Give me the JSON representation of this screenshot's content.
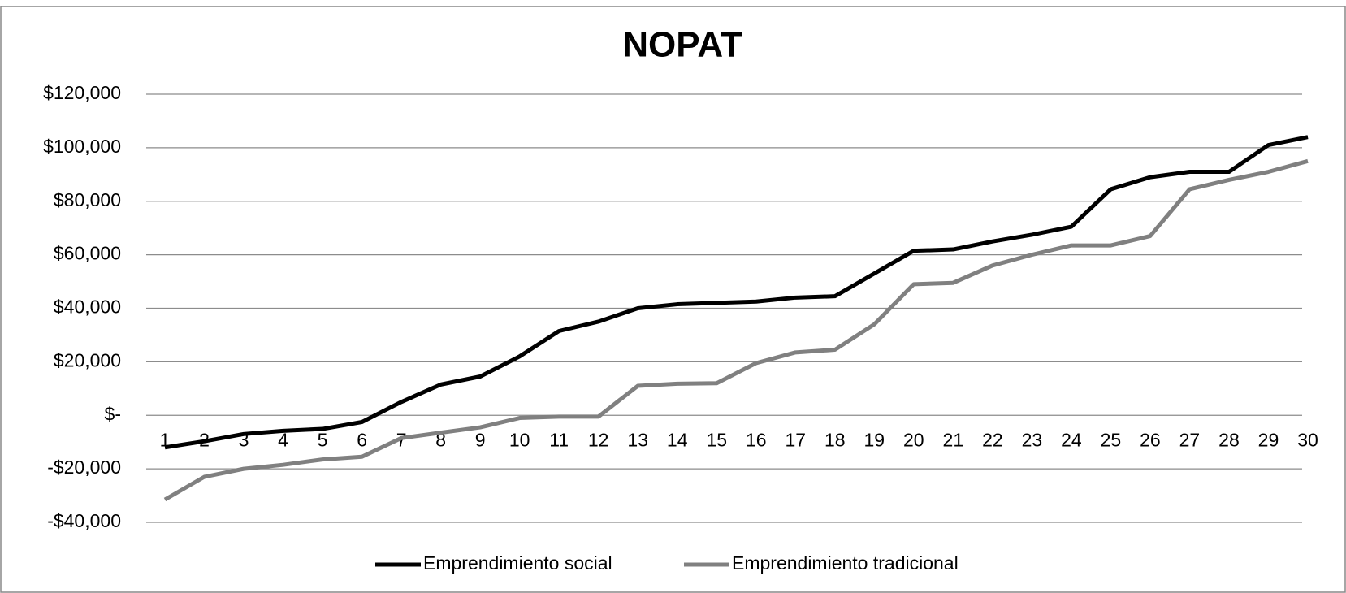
{
  "chart_data": {
    "type": "line",
    "title": "NOPAT",
    "categories": [
      "1",
      "2",
      "3",
      "4",
      "5",
      "6",
      "7",
      "8",
      "9",
      "10",
      "11",
      "12",
      "13",
      "14",
      "15",
      "16",
      "17",
      "18",
      "19",
      "20",
      "21",
      "22",
      "23",
      "24",
      "25",
      "26",
      "27",
      "28",
      "29",
      "30"
    ],
    "series": [
      {
        "name": "Emprendimiento social",
        "color": "#000000",
        "values": [
          -12000,
          -9700,
          -7000,
          -5800,
          -5100,
          -2500,
          5000,
          11500,
          14500,
          22000,
          31500,
          35000,
          40000,
          41500,
          42000,
          42500,
          44000,
          44500,
          53000,
          61500,
          62000,
          65000,
          67500,
          70500,
          84500,
          89000,
          91000,
          91000,
          101000,
          104000
        ]
      },
      {
        "name": "Emprendimiento tradicional",
        "color": "#808080",
        "values": [
          -31500,
          -23000,
          -20000,
          -18500,
          -16500,
          -15500,
          -8500,
          -6500,
          -4500,
          -1000,
          -500,
          -500,
          11000,
          11800,
          12000,
          19500,
          23500,
          24500,
          34000,
          49000,
          49500,
          56000,
          60000,
          63500,
          63500,
          67000,
          84500,
          88000,
          91000,
          95000
        ]
      }
    ],
    "ylim": [
      -40000,
      120000
    ],
    "yticks": [
      {
        "value": -40000,
        "label": "-$40,000"
      },
      {
        "value": -20000,
        "label": "-$20,000"
      },
      {
        "value": 0,
        "label": "$-"
      },
      {
        "value": 20000,
        "label": "$20,000"
      },
      {
        "value": 40000,
        "label": "$40,000"
      },
      {
        "value": 60000,
        "label": "$60,000"
      },
      {
        "value": 80000,
        "label": "$80,000"
      },
      {
        "value": 100000,
        "label": "$100,000"
      },
      {
        "value": 120000,
        "label": "$120,000"
      }
    ],
    "grid": true,
    "legend": "bottom"
  }
}
